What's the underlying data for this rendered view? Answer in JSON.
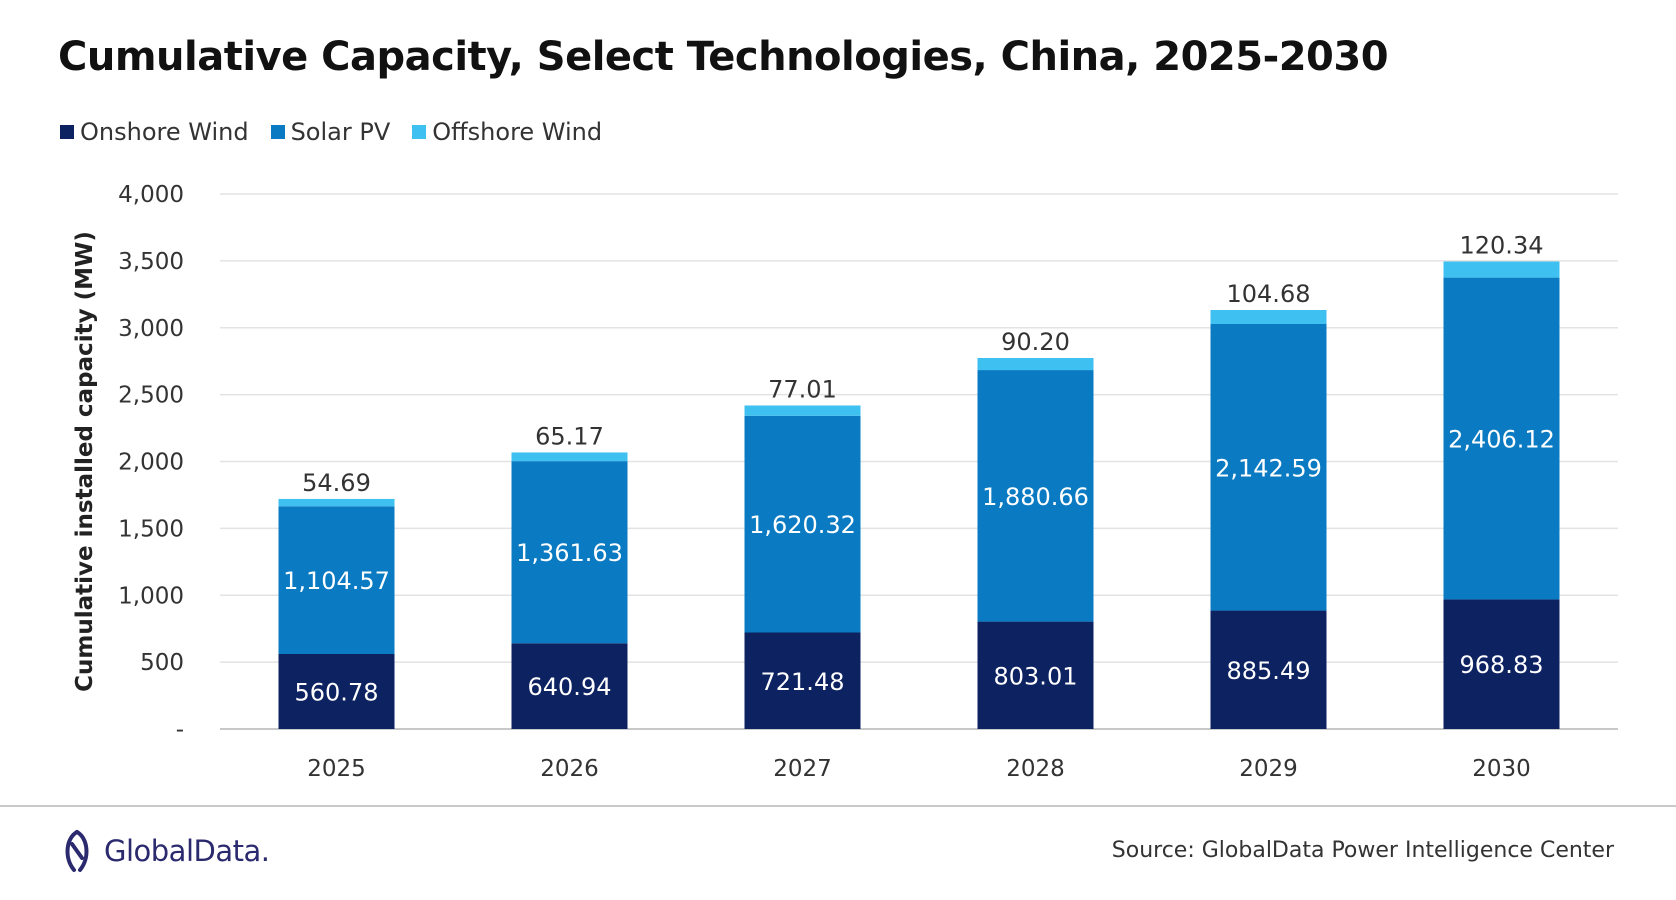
{
  "chart_data": {
    "type": "bar",
    "stacked": true,
    "title": "Cumulative Capacity, Select Technologies, China, 2025-2030",
    "ylabel": "Cumulative installed capacity (MW)",
    "xlabel": "",
    "categories": [
      "2025",
      "2026",
      "2027",
      "2028",
      "2029",
      "2030"
    ],
    "series": [
      {
        "name": "Onshore Wind",
        "color": "#0d2260",
        "values": [
          560.78,
          640.94,
          721.48,
          803.01,
          885.49,
          968.83
        ],
        "labels": [
          "560.78",
          "640.94",
          "721.48",
          "803.01",
          "885.49",
          "968.83"
        ]
      },
      {
        "name": "Solar PV",
        "color": "#0a7bc2",
        "values": [
          1104.57,
          1361.63,
          1620.32,
          1880.66,
          2142.59,
          2406.12
        ],
        "labels": [
          "1,104.57",
          "1,361.63",
          "1,620.32",
          "1,880.66",
          "2,142.59",
          "2,406.12"
        ]
      },
      {
        "name": "Offshore Wind",
        "color": "#3ec0f0",
        "values": [
          54.69,
          65.17,
          77.01,
          90.2,
          104.68,
          120.34
        ],
        "labels": [
          "54.69",
          "65.17",
          "77.01",
          "90.20",
          "104.68",
          "120.34"
        ]
      }
    ],
    "ylim": [
      0,
      4000
    ],
    "yticks": [
      0,
      500,
      1000,
      1500,
      2000,
      2500,
      3000,
      3500,
      4000
    ],
    "ytick_labels": [
      "-",
      "500",
      "1,000",
      "1,500",
      "2,000",
      "2,500",
      "3,000",
      "3,500",
      "4,000"
    ],
    "grid": true,
    "legend_position": "top-left"
  },
  "footer": {
    "logo_text": "GlobalData.",
    "source": "Source: GlobalData Power Intelligence Center"
  }
}
